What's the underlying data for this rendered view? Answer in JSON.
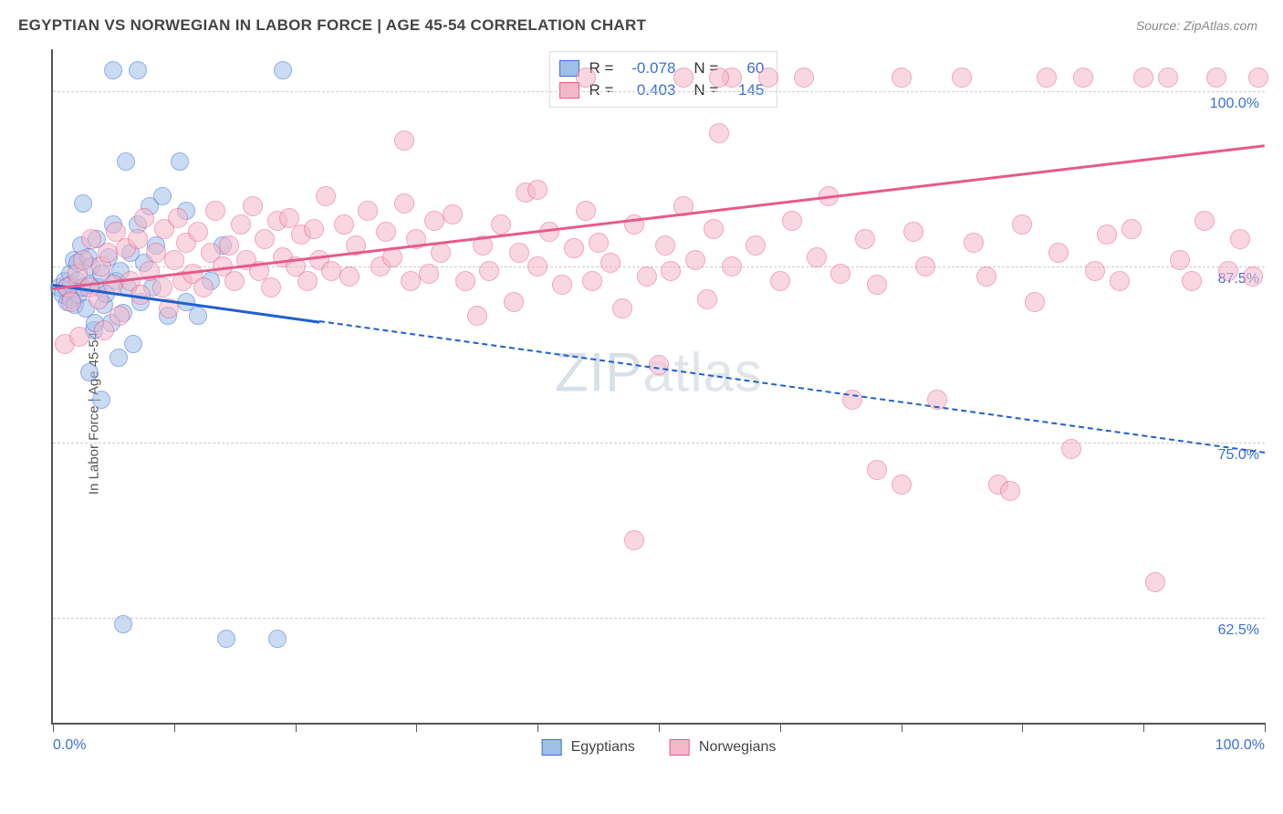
{
  "header": {
    "title": "EGYPTIAN VS NORWEGIAN IN LABOR FORCE | AGE 45-54 CORRELATION CHART",
    "source": "Source: ZipAtlas.com"
  },
  "chart": {
    "type": "scatter",
    "ylabel": "In Labor Force | Age 45-54",
    "watermark_a": "ZIP",
    "watermark_b": "atlas",
    "background_color": "#ffffff",
    "grid_color": "#cccccc",
    "axis_color": "#555555",
    "x_axis": {
      "min_label": "0.0%",
      "max_label": "100.0%",
      "min": 0,
      "max": 100,
      "tick_step": 10
    },
    "y_axis": {
      "ticks": [
        {
          "value": 100.0,
          "label": "100.0%"
        },
        {
          "value": 87.5,
          "label": "87.5%"
        },
        {
          "value": 75.0,
          "label": "75.0%"
        },
        {
          "value": 62.5,
          "label": "62.5%"
        }
      ],
      "view_min": 55,
      "view_max": 103
    },
    "legend_box": {
      "rows": [
        {
          "color_fill": "#9fbfe8",
          "color_border": "#3a6fd8",
          "r_label": "R =",
          "r_value": "-0.078",
          "n_label": "N =",
          "n_value": "60"
        },
        {
          "color_fill": "#f5b8c9",
          "color_border": "#e75a8a",
          "r_label": "R =",
          "r_value": "0.403",
          "n_label": "N =",
          "n_value": "145"
        }
      ]
    },
    "bottom_legend": [
      {
        "label": "Egyptians",
        "fill": "#9fbfe8",
        "border": "#3a6fd8"
      },
      {
        "label": "Norwegians",
        "fill": "#f5b8c9",
        "border": "#e75a8a"
      }
    ],
    "series": [
      {
        "name": "Egyptians",
        "marker": {
          "radius": 10,
          "fill": "#9fbfe8",
          "fill_opacity": 0.55,
          "border": "#3a6fd8",
          "border_width": 1.5
        },
        "trend": {
          "color": "#1f5fd0",
          "y_at_x0": 86.3,
          "y_at_x100": 74.3,
          "solid_until_x": 22
        },
        "points": [
          [
            0.5,
            86
          ],
          [
            0.8,
            85.5
          ],
          [
            1,
            86.5
          ],
          [
            1.1,
            86
          ],
          [
            1.2,
            85
          ],
          [
            1.4,
            87
          ],
          [
            1.5,
            86.2
          ],
          [
            1.5,
            85.2
          ],
          [
            1.7,
            88
          ],
          [
            1.8,
            84.8
          ],
          [
            2,
            86.5
          ],
          [
            2,
            87.8
          ],
          [
            2.1,
            85.5
          ],
          [
            2.3,
            89
          ],
          [
            2.5,
            86
          ],
          [
            2.5,
            92
          ],
          [
            2.7,
            84.5
          ],
          [
            2.9,
            88.2
          ],
          [
            3,
            80
          ],
          [
            3,
            86.2
          ],
          [
            3.2,
            87.5
          ],
          [
            3.4,
            83
          ],
          [
            3.6,
            89.5
          ],
          [
            3.8,
            86
          ],
          [
            4,
            78
          ],
          [
            4,
            87
          ],
          [
            4.2,
            84.8
          ],
          [
            4.4,
            85.6
          ],
          [
            4.6,
            88.2
          ],
          [
            4.8,
            83.5
          ],
          [
            5,
            90.5
          ],
          [
            5,
            101.5
          ],
          [
            5.2,
            86.5
          ],
          [
            5.4,
            81
          ],
          [
            5.6,
            87.2
          ],
          [
            5.8,
            84.2
          ],
          [
            6,
            95
          ],
          [
            6.2,
            86
          ],
          [
            6.4,
            88.5
          ],
          [
            6.6,
            82
          ],
          [
            7,
            90.5
          ],
          [
            7.2,
            85
          ],
          [
            7.5,
            87.8
          ],
          [
            8,
            91.8
          ],
          [
            8.2,
            86
          ],
          [
            8.5,
            89
          ],
          [
            9,
            92.5
          ],
          [
            9.5,
            84
          ],
          [
            10.5,
            95
          ],
          [
            11,
            91.5
          ],
          [
            11,
            85
          ],
          [
            12,
            84
          ],
          [
            13,
            86.5
          ],
          [
            14,
            89
          ],
          [
            5.8,
            62
          ],
          [
            19,
            101.5
          ],
          [
            14.3,
            61
          ],
          [
            18.5,
            61
          ],
          [
            7,
            101.5
          ],
          [
            3.5,
            83.5
          ]
        ]
      },
      {
        "name": "Norwegians",
        "marker": {
          "radius": 11,
          "fill": "#f5b8c9",
          "fill_opacity": 0.55,
          "border": "#e75a8a",
          "border_width": 1.5
        },
        "trend": {
          "color": "#e75a8a",
          "y_at_x0": 86.0,
          "y_at_x100": 96.2,
          "solid_until_x": 100
        },
        "points": [
          [
            1,
            82
          ],
          [
            1.2,
            86
          ],
          [
            1.5,
            85
          ],
          [
            2,
            87
          ],
          [
            2.2,
            82.5
          ],
          [
            2.5,
            88
          ],
          [
            3,
            86
          ],
          [
            3.2,
            89.5
          ],
          [
            3.8,
            85.2
          ],
          [
            4,
            87.5
          ],
          [
            4.2,
            83
          ],
          [
            4.5,
            88.5
          ],
          [
            5,
            86.2
          ],
          [
            5.2,
            90
          ],
          [
            5.5,
            84
          ],
          [
            6,
            88.8
          ],
          [
            6.4,
            86.5
          ],
          [
            7,
            89.5
          ],
          [
            7.2,
            85.5
          ],
          [
            7.5,
            91
          ],
          [
            8,
            87.2
          ],
          [
            8.5,
            88.5
          ],
          [
            9,
            86
          ],
          [
            9.2,
            90.2
          ],
          [
            9.6,
            84.5
          ],
          [
            10,
            88
          ],
          [
            10.3,
            91
          ],
          [
            10.7,
            86.5
          ],
          [
            11,
            89.2
          ],
          [
            11.5,
            87
          ],
          [
            12,
            90
          ],
          [
            12.4,
            86
          ],
          [
            13,
            88.5
          ],
          [
            13.4,
            91.5
          ],
          [
            14,
            87.5
          ],
          [
            14.5,
            89
          ],
          [
            15,
            86.5
          ],
          [
            15.5,
            90.5
          ],
          [
            16,
            88
          ],
          [
            16.5,
            91.8
          ],
          [
            17,
            87.2
          ],
          [
            17.5,
            89.5
          ],
          [
            18,
            86
          ],
          [
            18.5,
            90.8
          ],
          [
            19,
            88.2
          ],
          [
            19.5,
            91
          ],
          [
            20,
            87.5
          ],
          [
            20.5,
            89.8
          ],
          [
            21,
            86.5
          ],
          [
            21.5,
            90.2
          ],
          [
            22,
            88
          ],
          [
            22.5,
            92.5
          ],
          [
            23,
            87.2
          ],
          [
            24,
            90.5
          ],
          [
            24.5,
            86.8
          ],
          [
            25,
            89
          ],
          [
            26,
            91.5
          ],
          [
            27,
            87.5
          ],
          [
            27.5,
            90
          ],
          [
            28,
            88.2
          ],
          [
            29,
            92
          ],
          [
            29.5,
            86.5
          ],
          [
            30,
            89.5
          ],
          [
            31,
            87
          ],
          [
            31.5,
            90.8
          ],
          [
            32,
            88.5
          ],
          [
            33,
            91.2
          ],
          [
            34,
            86.5
          ],
          [
            35,
            84
          ],
          [
            35.5,
            89
          ],
          [
            36,
            87.2
          ],
          [
            37,
            90.5
          ],
          [
            38,
            85
          ],
          [
            38.5,
            88.5
          ],
          [
            39,
            92.8
          ],
          [
            40,
            87.5
          ],
          [
            41,
            90
          ],
          [
            42,
            86.2
          ],
          [
            43,
            88.8
          ],
          [
            44,
            91.5
          ],
          [
            44.5,
            86.5
          ],
          [
            45,
            89.2
          ],
          [
            46,
            87.8
          ],
          [
            47,
            84.5
          ],
          [
            48,
            90.5
          ],
          [
            49,
            86.8
          ],
          [
            50,
            80.5
          ],
          [
            50.5,
            89
          ],
          [
            51,
            87.2
          ],
          [
            52,
            91.8
          ],
          [
            53,
            88
          ],
          [
            54,
            85.2
          ],
          [
            54.5,
            90.2
          ],
          [
            55,
            97
          ],
          [
            56,
            87.5
          ],
          [
            58,
            89
          ],
          [
            59,
            101
          ],
          [
            60,
            86.5
          ],
          [
            61,
            90.8
          ],
          [
            62,
            101
          ],
          [
            63,
            88.2
          ],
          [
            64,
            92.5
          ],
          [
            65,
            87
          ],
          [
            66,
            78
          ],
          [
            67,
            89.5
          ],
          [
            68,
            86.2
          ],
          [
            70,
            101
          ],
          [
            70,
            72
          ],
          [
            71,
            90
          ],
          [
            72,
            87.5
          ],
          [
            73,
            78
          ],
          [
            75,
            101
          ],
          [
            76,
            89.2
          ],
          [
            77,
            86.8
          ],
          [
            78,
            72
          ],
          [
            79,
            71.5
          ],
          [
            80,
            90.5
          ],
          [
            81,
            85
          ],
          [
            82,
            101
          ],
          [
            83,
            88.5
          ],
          [
            84,
            74.5
          ],
          [
            85,
            101
          ],
          [
            86,
            87.2
          ],
          [
            87,
            89.8
          ],
          [
            88,
            86.5
          ],
          [
            89,
            90.2
          ],
          [
            90,
            101
          ],
          [
            91,
            65
          ],
          [
            92,
            101
          ],
          [
            93,
            88
          ],
          [
            94,
            86.5
          ],
          [
            95,
            90.8
          ],
          [
            96,
            101
          ],
          [
            97,
            87.2
          ],
          [
            98,
            89.5
          ],
          [
            99,
            86.8
          ],
          [
            99.5,
            101
          ],
          [
            52,
            101
          ],
          [
            56,
            101
          ],
          [
            48,
            68
          ],
          [
            29,
            96.5
          ],
          [
            44,
            101
          ],
          [
            40,
            93
          ],
          [
            68,
            73
          ],
          [
            55,
            101
          ]
        ]
      }
    ]
  }
}
